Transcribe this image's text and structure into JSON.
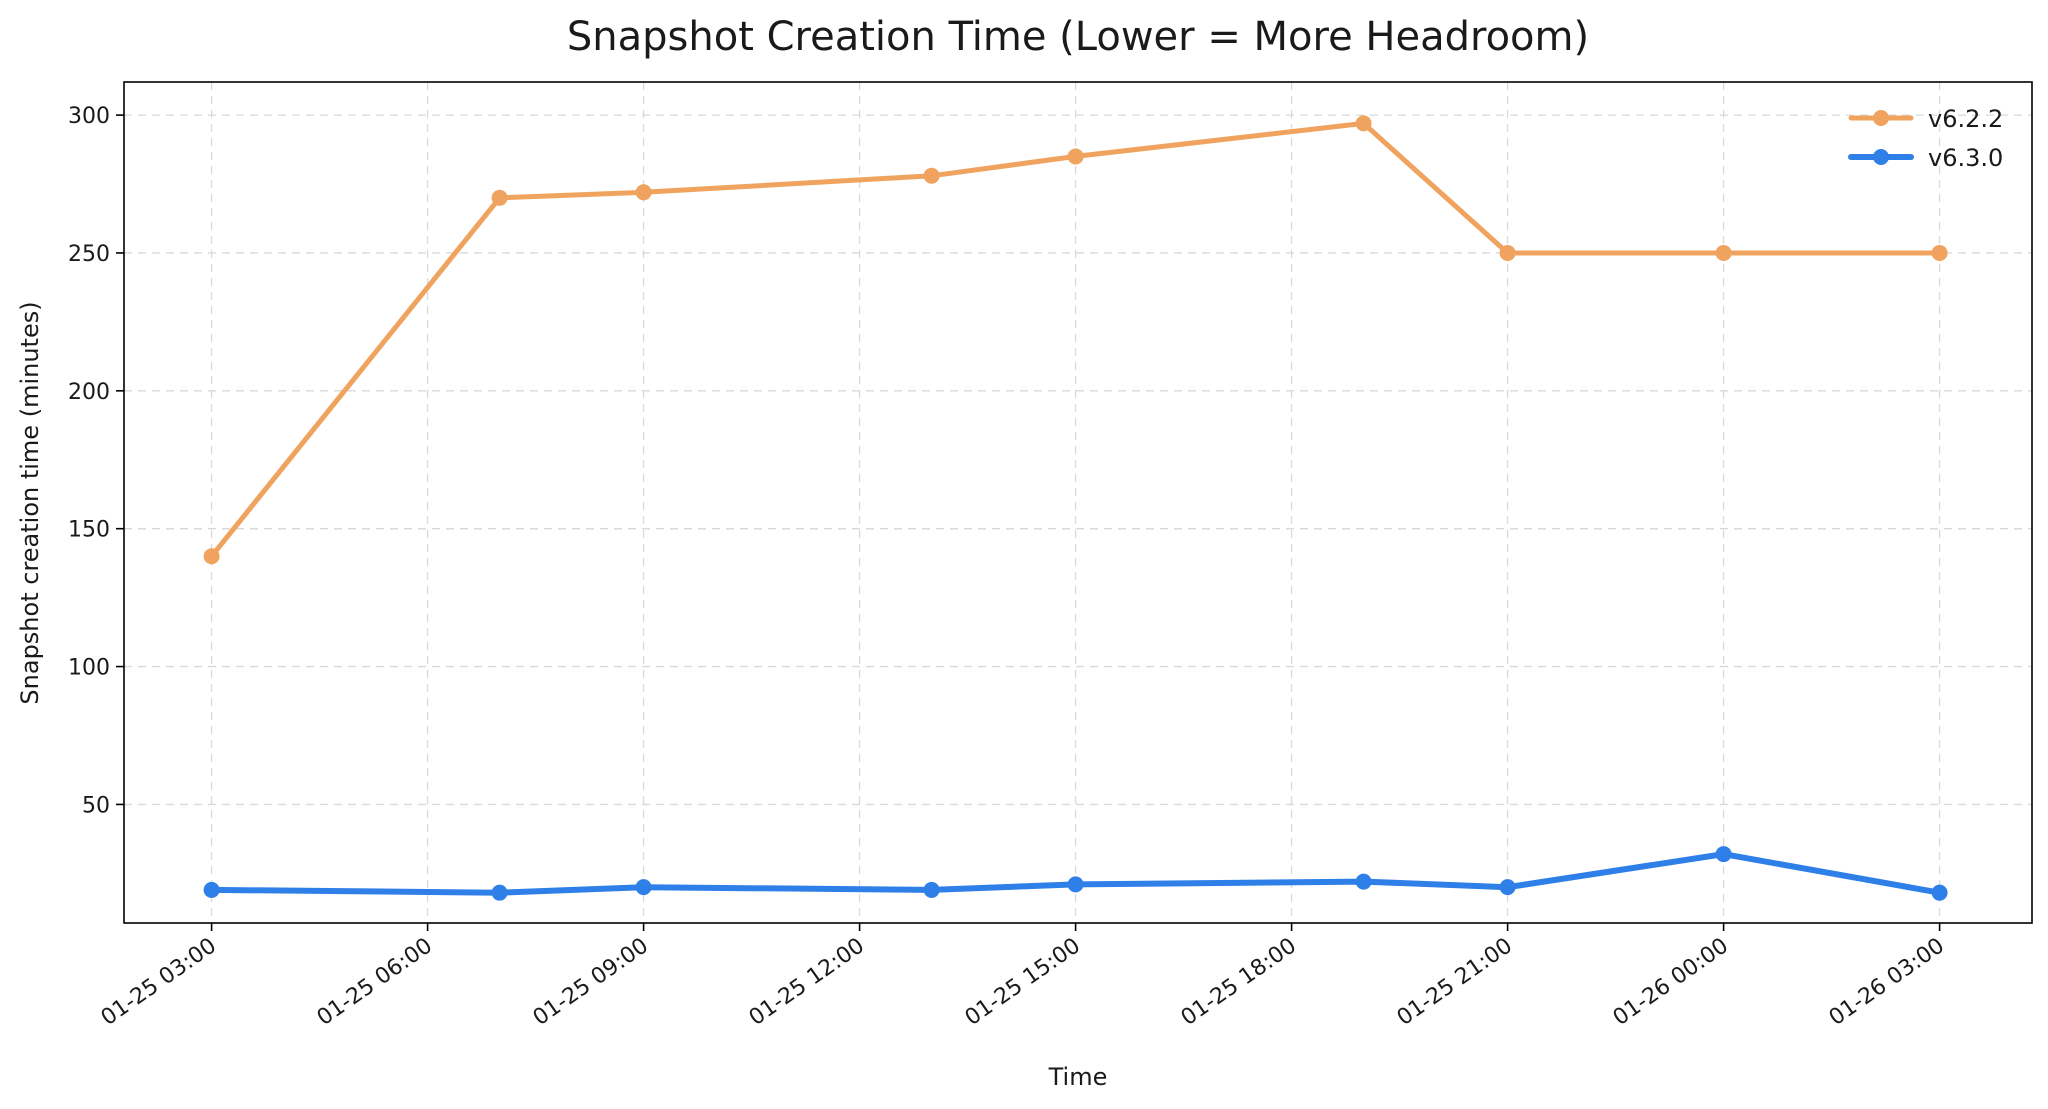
{
  "chart_data": {
    "type": "line",
    "title": "Snapshot Creation Time (Lower = More Headroom)",
    "xlabel": "Time",
    "ylabel": "Snapshot creation time (minutes)",
    "x_ticks": [
      "01-25 03:00",
      "01-25 06:00",
      "01-25 09:00",
      "01-25 12:00",
      "01-25 15:00",
      "01-25 18:00",
      "01-25 21:00",
      "01-26 00:00",
      "01-26 03:00"
    ],
    "y_ticks": [
      50,
      100,
      150,
      200,
      250,
      300
    ],
    "xlim": [
      "01-25 01:47",
      "01-26 04:17"
    ],
    "ylim": [
      7,
      312
    ],
    "grid": true,
    "legend_position": "top-right",
    "series": [
      {
        "name": "v6.2.2",
        "color": "#F0A35E",
        "points": [
          {
            "x": "01-25 03:00",
            "y": 140
          },
          {
            "x": "01-25 07:00",
            "y": 270
          },
          {
            "x": "01-25 09:00",
            "y": 272
          },
          {
            "x": "01-25 13:00",
            "y": 278
          },
          {
            "x": "01-25 15:00",
            "y": 285
          },
          {
            "x": "01-25 19:00",
            "y": 297
          },
          {
            "x": "01-25 21:00",
            "y": 250
          },
          {
            "x": "01-26 00:00",
            "y": 250
          },
          {
            "x": "01-26 03:00",
            "y": 250
          }
        ]
      },
      {
        "name": "v6.3.0",
        "color": "#2F7FE8",
        "points": [
          {
            "x": "01-25 03:00",
            "y": 19
          },
          {
            "x": "01-25 07:00",
            "y": 18
          },
          {
            "x": "01-25 09:00",
            "y": 20
          },
          {
            "x": "01-25 13:00",
            "y": 19
          },
          {
            "x": "01-25 15:00",
            "y": 21
          },
          {
            "x": "01-25 19:00",
            "y": 22
          },
          {
            "x": "01-25 21:00",
            "y": 20
          },
          {
            "x": "01-26 00:00",
            "y": 32
          },
          {
            "x": "01-26 03:00",
            "y": 18
          }
        ]
      }
    ]
  }
}
